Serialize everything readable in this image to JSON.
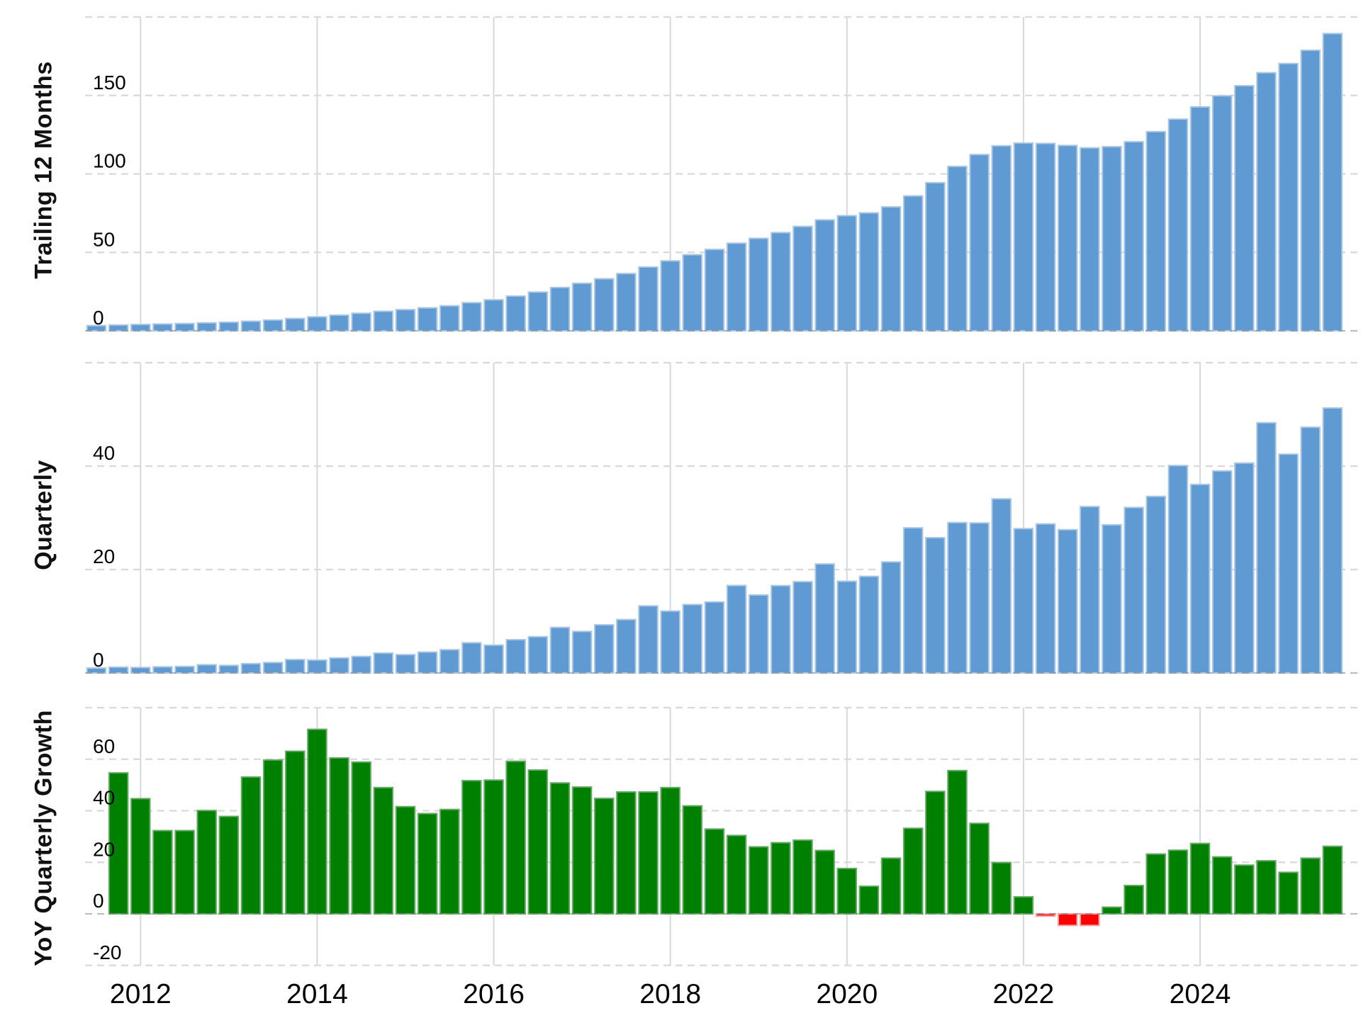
{
  "figure": {
    "background": "#ffffff",
    "axis_titles": {
      "top": "Trailing 12 Months",
      "middle": "Quarterly",
      "bottom": "YoY Quarterly Growth"
    },
    "x_year_labels": [
      "2012",
      "2014",
      "2016",
      "2018",
      "2020",
      "2022",
      "2024"
    ]
  },
  "colors": {
    "bar_blue": "#5f9ad2",
    "bar_blue_edge": "#aac7e4",
    "bar_green": "#008000",
    "bar_green_edge": "#64aa64",
    "bar_red": "#fe0000",
    "bar_red_edge": "#f8a0a0",
    "gridline": "#d9d9d9",
    "year_line": "#d5d8da",
    "zero_line": "#6f6f6f",
    "text": "#000000"
  },
  "chart_data": {
    "type": "bar",
    "x_quarters": [
      "2011-Q3",
      "2011-Q4",
      "2012-Q1",
      "2012-Q2",
      "2012-Q3",
      "2012-Q4",
      "2013-Q1",
      "2013-Q2",
      "2013-Q3",
      "2013-Q4",
      "2014-Q1",
      "2014-Q2",
      "2014-Q3",
      "2014-Q4",
      "2015-Q1",
      "2015-Q2",
      "2015-Q3",
      "2015-Q4",
      "2016-Q1",
      "2016-Q2",
      "2016-Q3",
      "2016-Q4",
      "2017-Q1",
      "2017-Q2",
      "2017-Q3",
      "2017-Q4",
      "2018-Q1",
      "2018-Q2",
      "2018-Q3",
      "2018-Q4",
      "2019-Q1",
      "2019-Q2",
      "2019-Q3",
      "2019-Q4",
      "2020-Q1",
      "2020-Q2",
      "2020-Q3",
      "2020-Q4",
      "2021-Q1",
      "2021-Q2",
      "2021-Q3",
      "2021-Q4",
      "2022-Q1",
      "2022-Q2",
      "2022-Q3",
      "2022-Q4",
      "2023-Q1",
      "2023-Q2",
      "2023-Q3",
      "2023-Q4",
      "2024-Q1",
      "2024-Q2",
      "2024-Q3",
      "2024-Q4",
      "2025-Q1",
      "2025-Q2",
      "2025-Q3"
    ],
    "x_year_ticks": [
      2012,
      2014,
      2016,
      2018,
      2020,
      2022,
      2024
    ],
    "panels": [
      {
        "id": "ttm",
        "ylabel": "Trailing 12 Months",
        "ylim": [
          0,
          200
        ],
        "gridlines": [
          0,
          50,
          100,
          150,
          200
        ],
        "ytick_labels": [
          0,
          50,
          100,
          150
        ],
        "series": "blue",
        "values": [
          3.31,
          3.71,
          4.04,
          4.33,
          4.64,
          5.09,
          5.49,
          6.12,
          6.87,
          7.87,
          8.92,
          10.01,
          11.2,
          12.47,
          13.51,
          14.64,
          15.94,
          17.93,
          19.77,
          22.16,
          24.67,
          27.64,
          30.29,
          33.17,
          36.49,
          40.65,
          44.59,
          48.5,
          51.9,
          55.84,
          58.95,
          62.6,
          66.53,
          70.7,
          73.36,
          75.16,
          78.98,
          85.97,
          94.4,
          104.79,
          112.33,
          117.93,
          119.67,
          119.41,
          118.12,
          116.61,
          117.35,
          120.52,
          126.96,
          134.9,
          142.71,
          149.78,
          156.23,
          164.5,
          170.36,
          178.8,
          189.46
        ]
      },
      {
        "id": "quarterly",
        "ylabel": "Quarterly",
        "ylim": [
          0,
          60
        ],
        "gridlines": [
          0,
          20,
          40,
          60
        ],
        "ytick_labels": [
          0,
          20,
          40
        ],
        "series": "blue",
        "values": [
          0.95,
          1.13,
          1.06,
          1.18,
          1.26,
          1.59,
          1.46,
          1.81,
          2.02,
          2.59,
          2.5,
          2.91,
          3.2,
          3.85,
          3.54,
          4.04,
          4.5,
          5.84,
          5.38,
          6.44,
          7.01,
          8.81,
          8.03,
          9.32,
          10.33,
          12.97,
          11.97,
          13.23,
          13.73,
          16.91,
          15.08,
          16.89,
          17.65,
          21.08,
          17.74,
          18.69,
          21.47,
          28.07,
          26.17,
          29.08,
          29.01,
          33.67,
          27.91,
          28.82,
          27.71,
          32.17,
          28.65,
          32.0,
          34.15,
          40.11,
          36.46,
          39.07,
          40.59,
          48.39,
          42.31,
          47.52,
          51.24
        ]
      },
      {
        "id": "yoy_growth",
        "ylabel": "YoY Quarterly Growth",
        "ylim": [
          -20,
          80
        ],
        "gridlines": [
          -20,
          0,
          20,
          40,
          60,
          80
        ],
        "ytick_labels": [
          -20,
          0,
          20,
          40,
          60
        ],
        "series": "green_red",
        "values": [
          null,
          54.7,
          44.7,
          32.3,
          32.3,
          40.1,
          37.8,
          53.1,
          59.7,
          63.1,
          71.6,
          60.5,
          58.9,
          49.0,
          41.6,
          38.9,
          40.5,
          51.7,
          51.9,
          59.2,
          55.8,
          50.8,
          49.2,
          44.8,
          47.3,
          47.3,
          49.0,
          41.9,
          32.9,
          30.4,
          26.0,
          27.6,
          28.6,
          24.6,
          17.6,
          10.7,
          21.6,
          33.2,
          47.5,
          55.6,
          35.1,
          19.9,
          6.6,
          -0.9,
          -4.5,
          -4.5,
          2.6,
          11.0,
          23.2,
          24.7,
          27.3,
          22.1,
          18.9,
          20.6,
          16.1,
          21.6,
          26.2
        ]
      }
    ]
  }
}
